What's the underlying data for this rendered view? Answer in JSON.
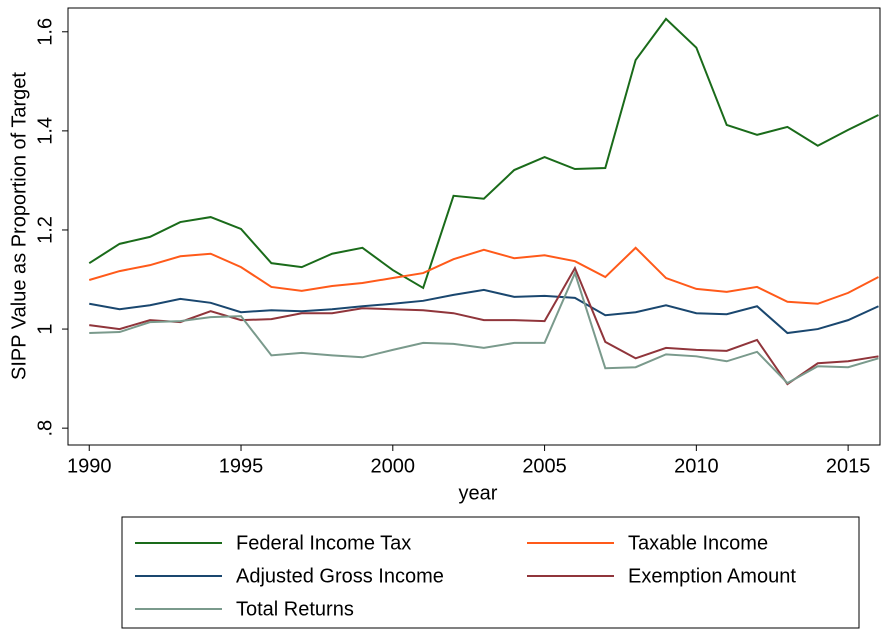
{
  "chart_data": {
    "type": "line",
    "x_label": "year",
    "y_label": "SIPP Value as Proportion of Target",
    "x": [
      1990,
      1991,
      1992,
      1993,
      1994,
      1995,
      1996,
      1997,
      1998,
      1999,
      2000,
      2001,
      2002,
      2003,
      2004,
      2005,
      2006,
      2007,
      2008,
      2009,
      2010,
      2011,
      2012,
      2013,
      2014,
      2015,
      2016
    ],
    "series": [
      {
        "name": "Federal Income Tax",
        "color": "#1a6b1a",
        "values": [
          1.133,
          1.172,
          1.186,
          1.216,
          1.226,
          1.202,
          1.133,
          1.125,
          1.152,
          1.164,
          1.119,
          1.083,
          1.269,
          1.263,
          1.321,
          1.347,
          1.323,
          1.325,
          1.543,
          1.626,
          1.568,
          1.412,
          1.392,
          1.408,
          1.37,
          1.402,
          1.432
        ]
      },
      {
        "name": "Taxable Income",
        "color": "#ff5a1a",
        "values": [
          1.099,
          1.117,
          1.129,
          1.147,
          1.152,
          1.125,
          1.085,
          1.077,
          1.087,
          1.093,
          1.103,
          1.113,
          1.141,
          1.16,
          1.143,
          1.149,
          1.137,
          1.105,
          1.164,
          1.103,
          1.081,
          1.075,
          1.085,
          1.055,
          1.051,
          1.073,
          1.105
        ]
      },
      {
        "name": "Adjusted Gross Income",
        "color": "#1a476f",
        "values": [
          1.051,
          1.04,
          1.048,
          1.061,
          1.053,
          1.034,
          1.038,
          1.036,
          1.04,
          1.046,
          1.051,
          1.057,
          1.069,
          1.079,
          1.065,
          1.067,
          1.063,
          1.028,
          1.034,
          1.048,
          1.032,
          1.03,
          1.046,
          0.992,
          1.0,
          1.018,
          1.046
        ]
      },
      {
        "name": "Exemption Amount",
        "color": "#90353b",
        "values": [
          1.008,
          1.0,
          1.018,
          1.014,
          1.036,
          1.018,
          1.02,
          1.032,
          1.032,
          1.042,
          1.04,
          1.038,
          1.032,
          1.018,
          1.018,
          1.016,
          1.123,
          0.974,
          0.941,
          0.962,
          0.958,
          0.956,
          0.978,
          0.889,
          0.931,
          0.935,
          0.945
        ]
      },
      {
        "name": "Total Returns",
        "color": "#7a9a8c",
        "values": [
          0.992,
          0.994,
          1.014,
          1.016,
          1.024,
          1.026,
          0.947,
          0.952,
          0.947,
          0.943,
          0.958,
          0.972,
          0.97,
          0.962,
          0.972,
          0.972,
          1.113,
          0.921,
          0.923,
          0.949,
          0.945,
          0.935,
          0.954,
          0.891,
          0.925,
          0.923,
          0.941
        ]
      }
    ],
    "xlim": [
      1989.3,
      2016.05
    ],
    "ylim": [
      0.766,
      1.648
    ],
    "xticks": [
      1990,
      1995,
      2000,
      2005,
      2010,
      2015
    ],
    "yticks": [
      {
        "value": 0.8,
        "label": ".8"
      },
      1,
      1.2,
      1.4,
      1.6
    ]
  }
}
